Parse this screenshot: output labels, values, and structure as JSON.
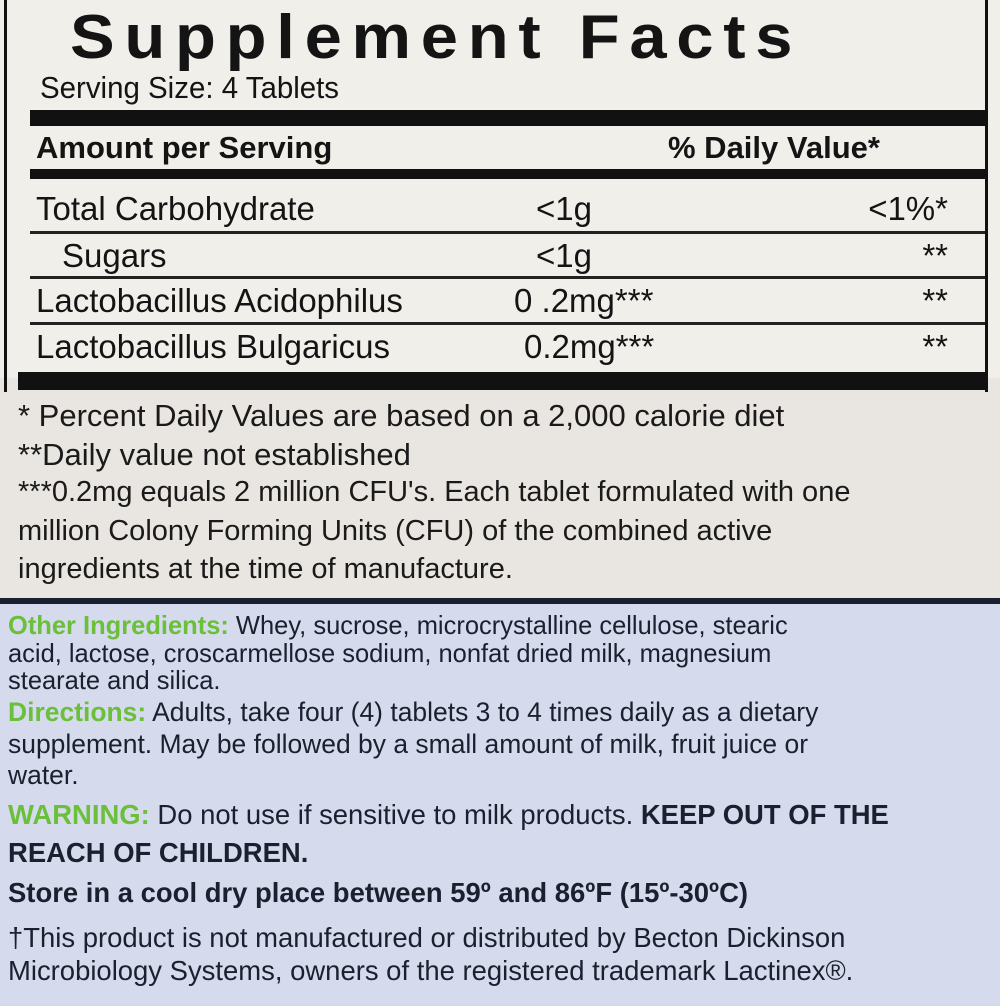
{
  "title": "Supplement Facts",
  "serving_size": "Serving Size: 4 Tablets",
  "header": {
    "amount": "Amount per Serving",
    "dv": "% Daily Value*"
  },
  "rows": [
    {
      "name": "Total Carbohydrate",
      "amount": "<1g",
      "dv": "<1%*"
    },
    {
      "name": "Sugars",
      "amount": "<1g",
      "dv": "**"
    },
    {
      "name": "Lactobacillus Acidophilus",
      "amount": "0 .2mg***",
      "dv": "**"
    },
    {
      "name": "Lactobacillus Bulgaricus",
      "amount": "0.2mg***",
      "dv": "**"
    }
  ],
  "footnotes": [
    "* Percent Daily  Values are based on a 2,000 calorie diet",
    "**Daily value not established",
    "***0.2mg equals 2 million CFU's. Each tablet formulated with one",
    "million Colony Forming Units (CFU) of the combined active",
    "ingredients at the time of manufacture."
  ],
  "other": {
    "label": "Other Ingredients:",
    "lines": [
      " Whey, sucrose, microcrystalline cellulose, stearic",
      "acid, lactose, croscarmellose sodium, nonfat dried milk, magnesium",
      "stearate and silica."
    ]
  },
  "directions": {
    "label": "Directions:",
    "lines": [
      " Adults, take four (4) tablets  3 to 4 times daily as a dietary",
      "supplement. May be followed by a small amount of milk, fruit juice or",
      "water."
    ]
  },
  "warning": {
    "label": "WARNING:",
    "text": " Do not use if sensitive to milk products. ",
    "bold1": "KEEP OUT OF THE",
    "bold2": "REACH OF CHILDREN."
  },
  "storage": "Store in a cool dry place between 59º and 86ºF (15º-30ºC)",
  "disclaimer": [
    "†This product is not manufactured or distributed by Becton Dickinson",
    "Microbiology Systems, owners of the registered trademark Lactinex®."
  ],
  "colors": {
    "label_green": "#6bbf3a",
    "bottom_bg": "#d5dbec",
    "top_bg": "#f1efea"
  }
}
